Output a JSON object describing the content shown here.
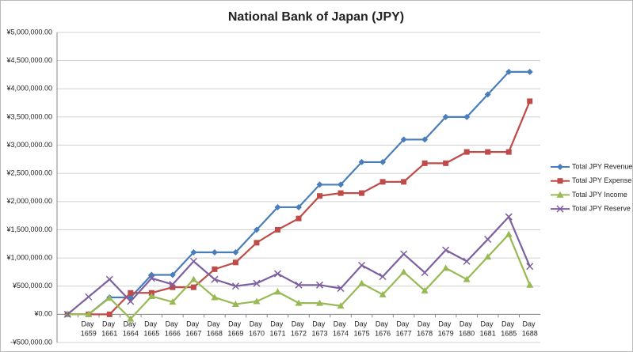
{
  "chart_data": {
    "type": "line",
    "title": "National Bank of Japan (JPY)",
    "categories": [
      null,
      "Day 1659",
      "Day 1661",
      "Day 1664",
      "Day 1665",
      "Day 1666",
      "Day 1667",
      "Day 1668",
      "Day 1669",
      "Day 1670",
      "Day 1671",
      "Day 1672",
      "Day 1673",
      "Day 1674",
      "Day 1675",
      "Day 1676",
      "Day 1677",
      "Day 1678",
      "Day 1679",
      "Day 1680",
      "Day 1681",
      "Day 1685",
      "Day 1688"
    ],
    "series": [
      {
        "name": "Total JPY Revenue",
        "color": "#4a7ebb",
        "marker": "diamond",
        "values": [
          0,
          0,
          300000,
          300000,
          700000,
          700000,
          1100000,
          1100000,
          1100000,
          1500000,
          1900000,
          1900000,
          2300000,
          2300000,
          2700000,
          2700000,
          3100000,
          3100000,
          3500000,
          3500000,
          3900000,
          4300000,
          4300000
        ]
      },
      {
        "name": "Total JPY Expense",
        "color": "#be4b48",
        "marker": "square",
        "values": [
          0,
          0,
          0,
          380000,
          380000,
          480000,
          480000,
          800000,
          920000,
          1270000,
          1500000,
          1700000,
          2100000,
          2150000,
          2150000,
          2350000,
          2350000,
          2680000,
          2680000,
          2880000,
          2880000,
          2880000,
          3780000
        ]
      },
      {
        "name": "Total JPY Income",
        "color": "#98b954",
        "marker": "triangle",
        "values": [
          0,
          0,
          290000,
          -80000,
          320000,
          220000,
          620000,
          300000,
          180000,
          230000,
          400000,
          200000,
          200000,
          150000,
          550000,
          350000,
          750000,
          420000,
          820000,
          620000,
          1020000,
          1420000,
          520000
        ]
      },
      {
        "name": "Total JPY Reserve",
        "color": "#7d60a0",
        "marker": "cross",
        "values": [
          0,
          310000,
          620000,
          230000,
          640000,
          530000,
          940000,
          620000,
          500000,
          550000,
          720000,
          520000,
          520000,
          460000,
          870000,
          670000,
          1070000,
          740000,
          1140000,
          940000,
          1330000,
          1730000,
          850000
        ]
      }
    ],
    "ylim": [
      -500000,
      5000000
    ],
    "yticks": [
      {
        "value": -500000,
        "label": "-¥500,000.00"
      },
      {
        "value": 0,
        "label": "¥0.00"
      },
      {
        "value": 500000,
        "label": "¥500,000.00"
      },
      {
        "value": 1000000,
        "label": "¥1,000,000.00"
      },
      {
        "value": 1500000,
        "label": "¥1,500,000.00"
      },
      {
        "value": 2000000,
        "label": "¥2,000,000.00"
      },
      {
        "value": 2500000,
        "label": "¥2,500,000.00"
      },
      {
        "value": 3000000,
        "label": "¥3,000,000.00"
      },
      {
        "value": 3500000,
        "label": "¥3,500,000.00"
      },
      {
        "value": 4000000,
        "label": "¥4,000,000.00"
      },
      {
        "value": 4500000,
        "label": "¥4,500,000.00"
      },
      {
        "value": 5000000,
        "label": "¥5,000,000.00"
      }
    ],
    "grid": true,
    "legend": "right"
  }
}
